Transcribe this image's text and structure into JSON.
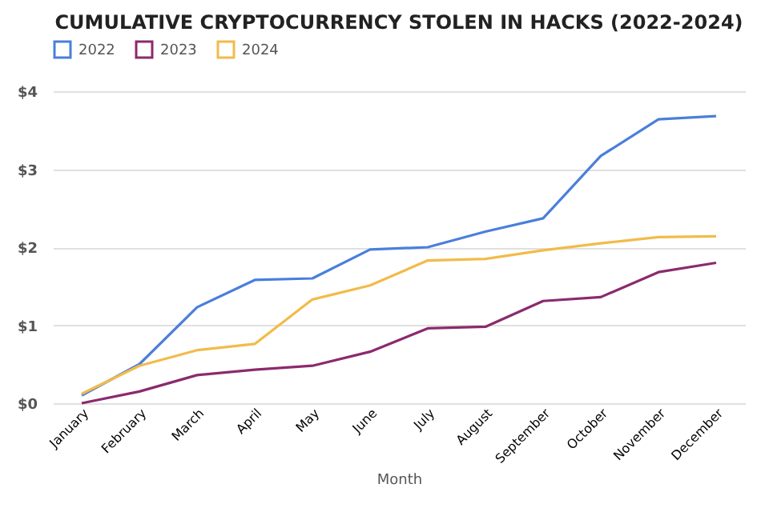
{
  "chart_data": {
    "type": "line",
    "title": "CUMULATIVE CRYPTOCURRENCY STOLEN IN HACKS (2022-2024)",
    "xlabel": "Month",
    "categories": [
      "January",
      "February",
      "March",
      "April",
      "May",
      "June",
      "July",
      "August",
      "September",
      "October",
      "November",
      "December"
    ],
    "series": [
      {
        "name": "2022",
        "color": "#4a7fdc",
        "values": [
          0.1,
          0.5,
          1.23,
          1.58,
          1.6,
          1.97,
          2.0,
          2.2,
          2.37,
          3.17,
          3.64,
          3.68
        ]
      },
      {
        "name": "2023",
        "color": "#8b2a6e",
        "values": [
          0.0,
          0.15,
          0.36,
          0.43,
          0.48,
          0.66,
          0.96,
          0.98,
          1.31,
          1.36,
          1.68,
          1.8
        ]
      },
      {
        "name": "2024",
        "color": "#f2bb4a",
        "values": [
          0.12,
          0.48,
          0.68,
          0.76,
          1.33,
          1.51,
          1.83,
          1.85,
          1.96,
          2.05,
          2.13,
          2.14
        ]
      }
    ],
    "ylim": [
      0,
      4
    ],
    "yticks": [
      {
        "value": 0,
        "label": "$0"
      },
      {
        "value": 1,
        "label": "$1"
      },
      {
        "value": 2,
        "label": "$2"
      },
      {
        "value": 3,
        "label": "$3"
      },
      {
        "value": 4,
        "label": "$4"
      }
    ],
    "grid": "y",
    "legend": "top",
    "marker": "none",
    "line_style": "solid"
  }
}
